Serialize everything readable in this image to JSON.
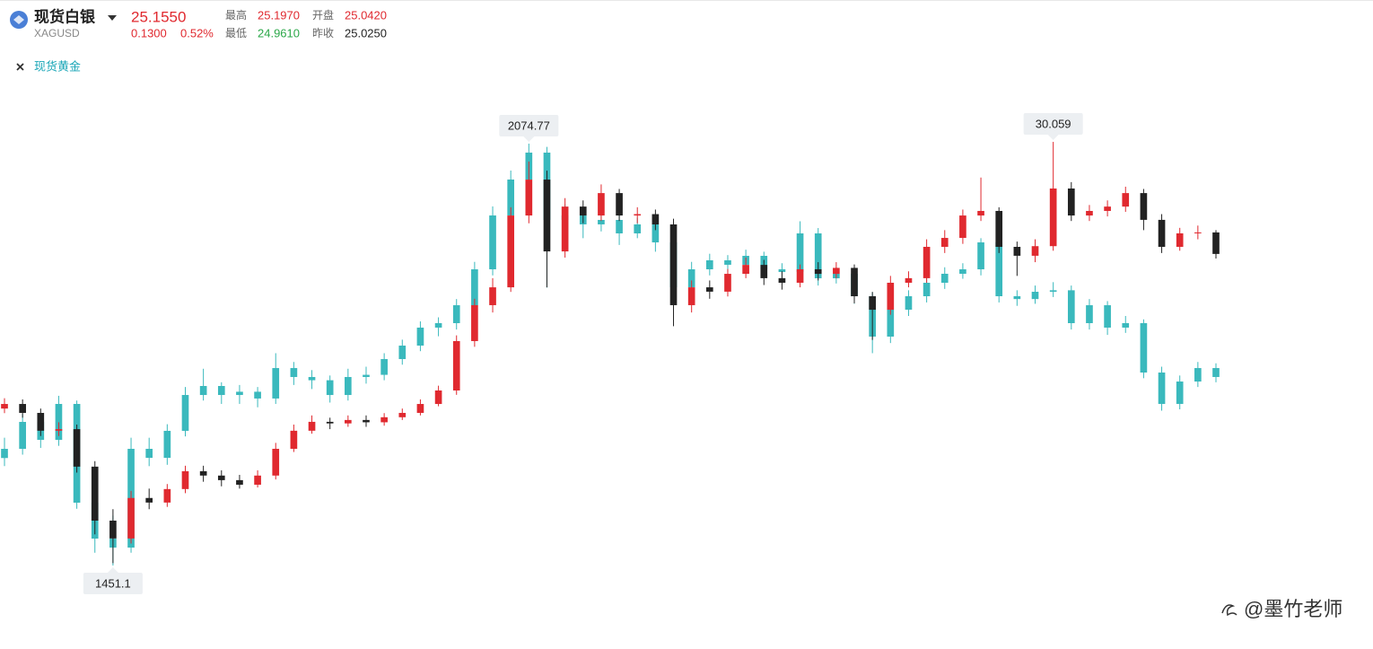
{
  "header": {
    "name": "现货白银",
    "symbol": "XAGUSD",
    "price": "25.1550",
    "change": "0.1300",
    "change_pct": "0.52%",
    "high_label": "最高",
    "high": "25.1970",
    "open_label": "开盘",
    "open": "25.0420",
    "low_label": "最低",
    "low": "24.9610",
    "prev_close_label": "昨收",
    "prev_close": "25.0250",
    "compare_tag": "现货黄金",
    "watermark": "@墨竹老师"
  },
  "chart_data": {
    "type": "candlestick",
    "ylim": [
      10.36,
      31.16
    ],
    "y2lim": [
      1411.3,
      2114.6
    ],
    "series": [
      {
        "name": "现货白银",
        "up_color": "#e0292f",
        "down_color": "#222222",
        "marked_extremes": [
          "max"
        ],
        "ohlc": [
          [
            18.4,
            18.85,
            18.2,
            18.6
          ],
          [
            18.6,
            18.8,
            18.0,
            18.21
          ],
          [
            18.21,
            18.4,
            17.2,
            17.43
          ],
          [
            17.43,
            17.8,
            17.2,
            17.5
          ],
          [
            17.5,
            17.7,
            15.6,
            15.86
          ],
          [
            15.86,
            16.1,
            12.9,
            13.5
          ],
          [
            13.5,
            14.0,
            11.64,
            12.72
          ],
          [
            12.72,
            14.8,
            12.5,
            14.49
          ],
          [
            14.49,
            14.9,
            14.0,
            14.29
          ],
          [
            14.29,
            15.1,
            14.1,
            14.88
          ],
          [
            14.88,
            15.9,
            14.7,
            15.66
          ],
          [
            15.66,
            15.9,
            15.2,
            15.47
          ],
          [
            15.47,
            15.7,
            15.0,
            15.27
          ],
          [
            15.27,
            15.5,
            14.9,
            15.07
          ],
          [
            15.07,
            15.7,
            14.95,
            15.47
          ],
          [
            15.47,
            16.9,
            15.3,
            16.64
          ],
          [
            16.64,
            17.7,
            16.5,
            17.43
          ],
          [
            17.43,
            18.1,
            17.3,
            17.82
          ],
          [
            17.82,
            18.0,
            17.5,
            17.75
          ],
          [
            17.75,
            18.1,
            17.6,
            17.9
          ],
          [
            17.9,
            18.1,
            17.6,
            17.8
          ],
          [
            17.8,
            18.2,
            17.65,
            18.02
          ],
          [
            18.02,
            18.4,
            17.9,
            18.21
          ],
          [
            18.21,
            18.8,
            18.1,
            18.6
          ],
          [
            18.6,
            19.4,
            18.5,
            19.19
          ],
          [
            19.19,
            21.6,
            19.0,
            21.35
          ],
          [
            21.35,
            23.2,
            21.1,
            22.92
          ],
          [
            22.92,
            24.1,
            22.6,
            23.7
          ],
          [
            23.7,
            27.2,
            23.5,
            26.84
          ],
          [
            26.84,
            29.2,
            26.5,
            28.41
          ],
          [
            28.41,
            28.8,
            23.7,
            25.27
          ],
          [
            25.27,
            27.6,
            25.0,
            27.23
          ],
          [
            27.23,
            27.5,
            26.5,
            26.84
          ],
          [
            26.84,
            28.2,
            26.6,
            27.82
          ],
          [
            27.82,
            28.0,
            26.6,
            26.84
          ],
          [
            26.84,
            27.2,
            26.5,
            26.9
          ],
          [
            26.9,
            27.1,
            26.2,
            26.45
          ],
          [
            26.45,
            26.7,
            22.0,
            22.92
          ],
          [
            22.92,
            24.0,
            22.6,
            23.7
          ],
          [
            23.7,
            24.0,
            23.2,
            23.51
          ],
          [
            23.51,
            24.5,
            23.3,
            24.29
          ],
          [
            24.29,
            25.0,
            24.1,
            24.68
          ],
          [
            24.68,
            24.9,
            23.8,
            24.1
          ],
          [
            24.1,
            24.4,
            23.6,
            23.9
          ],
          [
            23.9,
            24.7,
            23.7,
            24.49
          ],
          [
            24.49,
            24.8,
            24.0,
            24.29
          ],
          [
            24.29,
            24.8,
            24.1,
            24.55
          ],
          [
            24.55,
            24.7,
            23.0,
            23.31
          ],
          [
            23.31,
            23.5,
            21.4,
            22.72
          ],
          [
            22.72,
            24.2,
            22.5,
            23.9
          ],
          [
            23.9,
            24.4,
            23.7,
            24.1
          ],
          [
            24.1,
            25.8,
            23.9,
            25.47
          ],
          [
            25.47,
            26.2,
            25.2,
            25.86
          ],
          [
            25.86,
            27.1,
            25.6,
            26.84
          ],
          [
            26.84,
            28.5,
            26.6,
            27.04
          ],
          [
            27.04,
            27.2,
            25.2,
            25.47
          ],
          [
            25.47,
            25.7,
            24.2,
            25.08
          ],
          [
            25.08,
            25.8,
            24.8,
            25.5
          ],
          [
            25.5,
            30.059,
            25.3,
            28.02
          ],
          [
            28.02,
            28.3,
            26.6,
            26.84
          ],
          [
            26.84,
            27.3,
            26.6,
            27.04
          ],
          [
            27.04,
            27.5,
            26.8,
            27.23
          ],
          [
            27.23,
            28.1,
            27.0,
            27.82
          ],
          [
            27.82,
            28.0,
            26.2,
            26.65
          ],
          [
            26.65,
            26.9,
            25.2,
            25.47
          ],
          [
            25.47,
            26.3,
            25.3,
            26.06
          ],
          [
            26.06,
            26.4,
            25.8,
            26.1
          ],
          [
            26.1,
            26.2,
            24.96,
            25.16
          ]
        ]
      },
      {
        "name": "现货黄金",
        "axis": "y2",
        "up_color": "#3ab9bd",
        "down_color": "#3ab9bd",
        "marked_extremes": [
          "max",
          "min"
        ],
        "ohlc": [
          [
            1610.0,
            1640.0,
            1598.0,
            1623.6
          ],
          [
            1623.6,
            1675.0,
            1615.0,
            1663.4
          ],
          [
            1663.4,
            1670.0,
            1625.0,
            1636.9
          ],
          [
            1636.9,
            1702.0,
            1628.0,
            1690.0
          ],
          [
            1690.0,
            1695.0,
            1535.0,
            1544.0
          ],
          [
            1544.0,
            1560.0,
            1470.0,
            1490.9
          ],
          [
            1490.9,
            1525.0,
            1451.1,
            1477.6
          ],
          [
            1477.6,
            1640.0,
            1470.0,
            1623.6
          ],
          [
            1623.6,
            1640.0,
            1598.0,
            1610.3
          ],
          [
            1610.3,
            1660.0,
            1600.0,
            1650.2
          ],
          [
            1650.2,
            1715.0,
            1642.0,
            1703.2
          ],
          [
            1703.2,
            1742.0,
            1695.0,
            1716.5
          ],
          [
            1716.5,
            1722.0,
            1690.0,
            1703.2
          ],
          [
            1703.2,
            1718.0,
            1690.0,
            1708.0
          ],
          [
            1708.0,
            1715.0,
            1685.0,
            1698.0
          ],
          [
            1698.0,
            1765.0,
            1690.0,
            1743.0
          ],
          [
            1743.0,
            1752.0,
            1718.0,
            1729.8
          ],
          [
            1729.8,
            1740.0,
            1712.0,
            1725.0
          ],
          [
            1725.0,
            1732.0,
            1692.0,
            1703.2
          ],
          [
            1703.2,
            1742.0,
            1695.0,
            1729.8
          ],
          [
            1729.8,
            1745.0,
            1720.0,
            1733.0
          ],
          [
            1733.0,
            1765.0,
            1725.0,
            1756.3
          ],
          [
            1756.3,
            1785.0,
            1748.0,
            1776.2
          ],
          [
            1776.2,
            1812.0,
            1768.0,
            1802.8
          ],
          [
            1802.8,
            1818.0,
            1790.0,
            1809.4
          ],
          [
            1809.4,
            1845.0,
            1800.0,
            1835.9
          ],
          [
            1835.9,
            1900.0,
            1828.0,
            1889.0
          ],
          [
            1889.0,
            1982.0,
            1880.0,
            1968.6
          ],
          [
            1968.6,
            2035.0,
            1955.0,
            2021.7
          ],
          [
            2021.7,
            2074.77,
            2010.0,
            2061.5
          ],
          [
            2061.5,
            2070.0,
            1862.0,
            1962.0
          ],
          [
            1962.0,
            1985.0,
            1940.0,
            1968.6
          ],
          [
            1968.6,
            1975.0,
            1935.0,
            1955.4
          ],
          [
            1955.4,
            1975.0,
            1945.0,
            1962.0
          ],
          [
            1962.0,
            1970.0,
            1925.0,
            1942.1
          ],
          [
            1942.1,
            1965.0,
            1935.0,
            1955.4
          ],
          [
            1955.4,
            1962.0,
            1915.0,
            1928.8
          ],
          [
            1928.8,
            1935.0,
            1850.0,
            1862.5
          ],
          [
            1862.5,
            1900.0,
            1855.0,
            1889.0
          ],
          [
            1889.0,
            1912.0,
            1880.0,
            1902.3
          ],
          [
            1902.3,
            1910.0,
            1885.0,
            1895.7
          ],
          [
            1895.7,
            1918.0,
            1888.0,
            1908.9
          ],
          [
            1908.9,
            1915.0,
            1880.0,
            1889.0
          ],
          [
            1889.0,
            1898.0,
            1875.0,
            1885.0
          ],
          [
            1885.0,
            1960.0,
            1878.0,
            1942.1
          ],
          [
            1942.1,
            1950.0,
            1865.0,
            1875.7
          ],
          [
            1875.7,
            1892.0,
            1868.0,
            1882.4
          ],
          [
            1882.4,
            1890.0,
            1838.0,
            1849.2
          ],
          [
            1849.2,
            1855.0,
            1765.0,
            1789.5
          ],
          [
            1789.5,
            1840.0,
            1780.0,
            1829.3
          ],
          [
            1829.3,
            1858.0,
            1820.0,
            1849.2
          ],
          [
            1849.2,
            1878.0,
            1840.0,
            1869.1
          ],
          [
            1869.1,
            1892.0,
            1860.0,
            1882.4
          ],
          [
            1882.4,
            1898.0,
            1875.0,
            1889.0
          ],
          [
            1889.0,
            1935.0,
            1880.0,
            1928.8
          ],
          [
            1928.8,
            1935.0,
            1840.0,
            1849.2
          ],
          [
            1849.2,
            1858.0,
            1835.0,
            1845.0
          ],
          [
            1845.0,
            1865.0,
            1838.0,
            1855.8
          ],
          [
            1855.8,
            1870.0,
            1848.0,
            1858.0
          ],
          [
            1858.0,
            1865.0,
            1800.0,
            1809.4
          ],
          [
            1809.4,
            1845.0,
            1800.0,
            1835.9
          ],
          [
            1835.9,
            1842.0,
            1792.0,
            1802.8
          ],
          [
            1802.8,
            1820.0,
            1795.0,
            1809.4
          ],
          [
            1809.4,
            1815.0,
            1728.0,
            1736.4
          ],
          [
            1736.4,
            1745.0,
            1680.0,
            1690.0
          ],
          [
            1690.0,
            1732.0,
            1682.0,
            1723.1
          ],
          [
            1723.1,
            1752.0,
            1715.0,
            1743.0
          ],
          [
            1743.0,
            1750.0,
            1722.0,
            1729.8
          ]
        ]
      }
    ]
  }
}
